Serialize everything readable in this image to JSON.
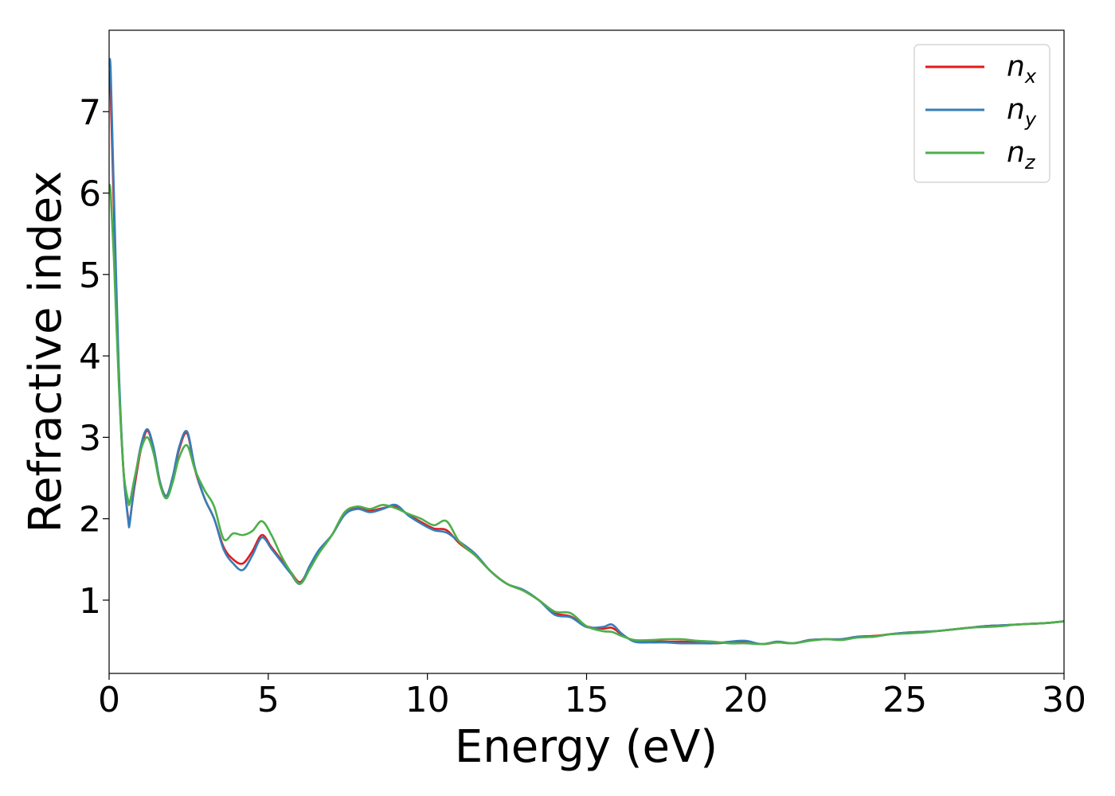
{
  "chart_data": {
    "type": "line",
    "title": "",
    "xlabel": "Energy (eV)",
    "ylabel": "Refractive index",
    "xlim": [
      0,
      30
    ],
    "ylim": [
      0.1,
      8.0
    ],
    "xticks": [
      0,
      5,
      10,
      15,
      20,
      25,
      30
    ],
    "yticks": [
      1,
      2,
      3,
      4,
      5,
      6,
      7
    ],
    "grid": false,
    "legend_position": "top-right",
    "series": [
      {
        "name": "n_x",
        "label_base": "n",
        "label_sub": "x",
        "color": "#e41a1c",
        "x": [
          0,
          0.05,
          0.15,
          0.3,
          0.45,
          0.6,
          0.65,
          0.8,
          1.0,
          1.2,
          1.4,
          1.6,
          1.8,
          2.0,
          2.2,
          2.45,
          2.7,
          3.0,
          3.3,
          3.6,
          3.9,
          4.2,
          4.5,
          4.8,
          5.1,
          5.4,
          5.7,
          6.0,
          6.3,
          6.6,
          7.0,
          7.4,
          7.8,
          8.2,
          8.6,
          9.0,
          9.4,
          9.8,
          10.2,
          10.6,
          11.0,
          11.5,
          12.0,
          12.5,
          13.0,
          13.5,
          14.0,
          14.5,
          15.0,
          15.5,
          15.8,
          16.1,
          16.5,
          17.0,
          17.5,
          18.0,
          18.5,
          19.0,
          19.5,
          20.0,
          20.5,
          21.0,
          21.5,
          22.0,
          22.5,
          23.0,
          23.5,
          24.0,
          24.5,
          25.0,
          25.5,
          26.0,
          26.5,
          27.0,
          27.5,
          28.0,
          28.5,
          29.0,
          29.5,
          30.0
        ],
        "y": [
          7.5,
          7.2,
          5.8,
          3.8,
          2.6,
          2.0,
          1.98,
          2.4,
          2.85,
          3.08,
          2.85,
          2.45,
          2.28,
          2.5,
          2.85,
          3.05,
          2.6,
          2.25,
          2.0,
          1.65,
          1.5,
          1.45,
          1.6,
          1.8,
          1.65,
          1.5,
          1.35,
          1.22,
          1.4,
          1.6,
          1.8,
          2.05,
          2.14,
          2.1,
          2.13,
          2.15,
          2.05,
          1.96,
          1.88,
          1.86,
          1.7,
          1.55,
          1.35,
          1.2,
          1.12,
          1.0,
          0.84,
          0.8,
          0.68,
          0.65,
          0.66,
          0.58,
          0.5,
          0.5,
          0.49,
          0.49,
          0.48,
          0.47,
          0.48,
          0.49,
          0.46,
          0.48,
          0.47,
          0.51,
          0.52,
          0.52,
          0.55,
          0.56,
          0.58,
          0.6,
          0.61,
          0.62,
          0.64,
          0.66,
          0.68,
          0.69,
          0.7,
          0.71,
          0.72,
          0.74
        ]
      },
      {
        "name": "n_y",
        "label_base": "n",
        "label_sub": "y",
        "color": "#377eb8",
        "x": [
          0,
          0.05,
          0.15,
          0.3,
          0.45,
          0.6,
          0.65,
          0.8,
          1.0,
          1.2,
          1.4,
          1.6,
          1.8,
          2.0,
          2.2,
          2.45,
          2.7,
          3.0,
          3.3,
          3.6,
          3.9,
          4.2,
          4.5,
          4.8,
          5.1,
          5.4,
          5.7,
          6.0,
          6.3,
          6.6,
          7.0,
          7.4,
          7.8,
          8.2,
          8.6,
          9.0,
          9.4,
          9.8,
          10.2,
          10.6,
          11.0,
          11.5,
          12.0,
          12.5,
          13.0,
          13.5,
          14.0,
          14.5,
          15.0,
          15.5,
          15.8,
          16.1,
          16.5,
          17.0,
          17.5,
          18.0,
          18.5,
          19.0,
          19.5,
          20.0,
          20.5,
          21.0,
          21.5,
          22.0,
          22.5,
          23.0,
          23.5,
          24.0,
          24.5,
          25.0,
          25.5,
          26.0,
          26.5,
          27.0,
          27.5,
          28.0,
          28.5,
          29.0,
          29.5,
          30.0
        ],
        "y": [
          7.6,
          7.5,
          6.0,
          3.9,
          2.6,
          1.98,
          1.95,
          2.45,
          2.9,
          3.1,
          2.87,
          2.45,
          2.28,
          2.52,
          2.88,
          3.07,
          2.62,
          2.25,
          2.0,
          1.62,
          1.45,
          1.37,
          1.55,
          1.77,
          1.63,
          1.48,
          1.33,
          1.2,
          1.42,
          1.62,
          1.8,
          2.05,
          2.12,
          2.08,
          2.12,
          2.17,
          2.04,
          1.94,
          1.86,
          1.83,
          1.72,
          1.57,
          1.35,
          1.2,
          1.13,
          1.0,
          0.82,
          0.79,
          0.67,
          0.67,
          0.7,
          0.59,
          0.49,
          0.48,
          0.48,
          0.47,
          0.47,
          0.47,
          0.49,
          0.5,
          0.46,
          0.49,
          0.47,
          0.51,
          0.52,
          0.52,
          0.55,
          0.55,
          0.58,
          0.6,
          0.61,
          0.62,
          0.64,
          0.66,
          0.68,
          0.69,
          0.7,
          0.71,
          0.72,
          0.74
        ]
      },
      {
        "name": "n_z",
        "label_base": "n",
        "label_sub": "z",
        "color": "#4daf4a",
        "x": [
          0,
          0.05,
          0.15,
          0.3,
          0.45,
          0.6,
          0.65,
          0.8,
          1.0,
          1.2,
          1.4,
          1.6,
          1.8,
          2.0,
          2.2,
          2.45,
          2.7,
          3.0,
          3.3,
          3.6,
          3.9,
          4.2,
          4.5,
          4.8,
          5.1,
          5.4,
          5.7,
          6.0,
          6.3,
          6.6,
          7.0,
          7.4,
          7.8,
          8.2,
          8.6,
          9.0,
          9.4,
          9.8,
          10.2,
          10.6,
          11.0,
          11.5,
          12.0,
          12.5,
          13.0,
          13.5,
          14.0,
          14.5,
          15.0,
          15.5,
          15.8,
          16.1,
          16.5,
          17.0,
          17.5,
          18.0,
          18.5,
          19.0,
          19.5,
          20.0,
          20.5,
          21.0,
          21.5,
          22.0,
          22.5,
          23.0,
          23.5,
          24.0,
          24.5,
          25.0,
          25.5,
          26.0,
          26.5,
          27.0,
          27.5,
          28.0,
          28.5,
          29.0,
          29.5,
          30.0
        ],
        "y": [
          6.1,
          6.0,
          5.2,
          3.7,
          2.6,
          2.22,
          2.2,
          2.5,
          2.85,
          3.0,
          2.8,
          2.42,
          2.25,
          2.45,
          2.75,
          2.9,
          2.6,
          2.35,
          2.15,
          1.75,
          1.82,
          1.8,
          1.85,
          1.97,
          1.8,
          1.55,
          1.35,
          1.2,
          1.38,
          1.58,
          1.8,
          2.08,
          2.15,
          2.12,
          2.17,
          2.13,
          2.06,
          2.0,
          1.92,
          1.97,
          1.72,
          1.55,
          1.35,
          1.2,
          1.12,
          1.0,
          0.86,
          0.84,
          0.68,
          0.62,
          0.61,
          0.56,
          0.51,
          0.51,
          0.52,
          0.52,
          0.5,
          0.49,
          0.47,
          0.47,
          0.46,
          0.48,
          0.47,
          0.5,
          0.52,
          0.51,
          0.54,
          0.55,
          0.58,
          0.59,
          0.6,
          0.62,
          0.64,
          0.66,
          0.67,
          0.68,
          0.7,
          0.71,
          0.72,
          0.74
        ]
      }
    ]
  }
}
